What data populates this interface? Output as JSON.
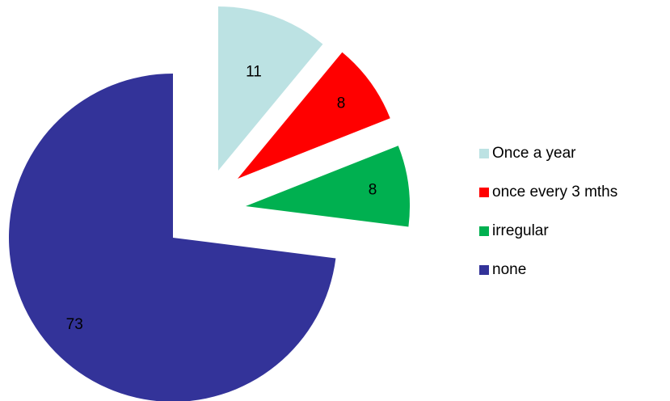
{
  "chart_data": {
    "type": "pie",
    "exploded": true,
    "legend_position": "right",
    "slices": [
      {
        "label": "Once a year",
        "value": 11,
        "color": "#BCE2E3"
      },
      {
        "label": "once every 3 mths",
        "value": 8,
        "color": "#FF0000"
      },
      {
        "label": "irregular",
        "value": 8,
        "color": "#00B050"
      },
      {
        "label": "none",
        "value": 73,
        "color": "#333399"
      }
    ]
  }
}
